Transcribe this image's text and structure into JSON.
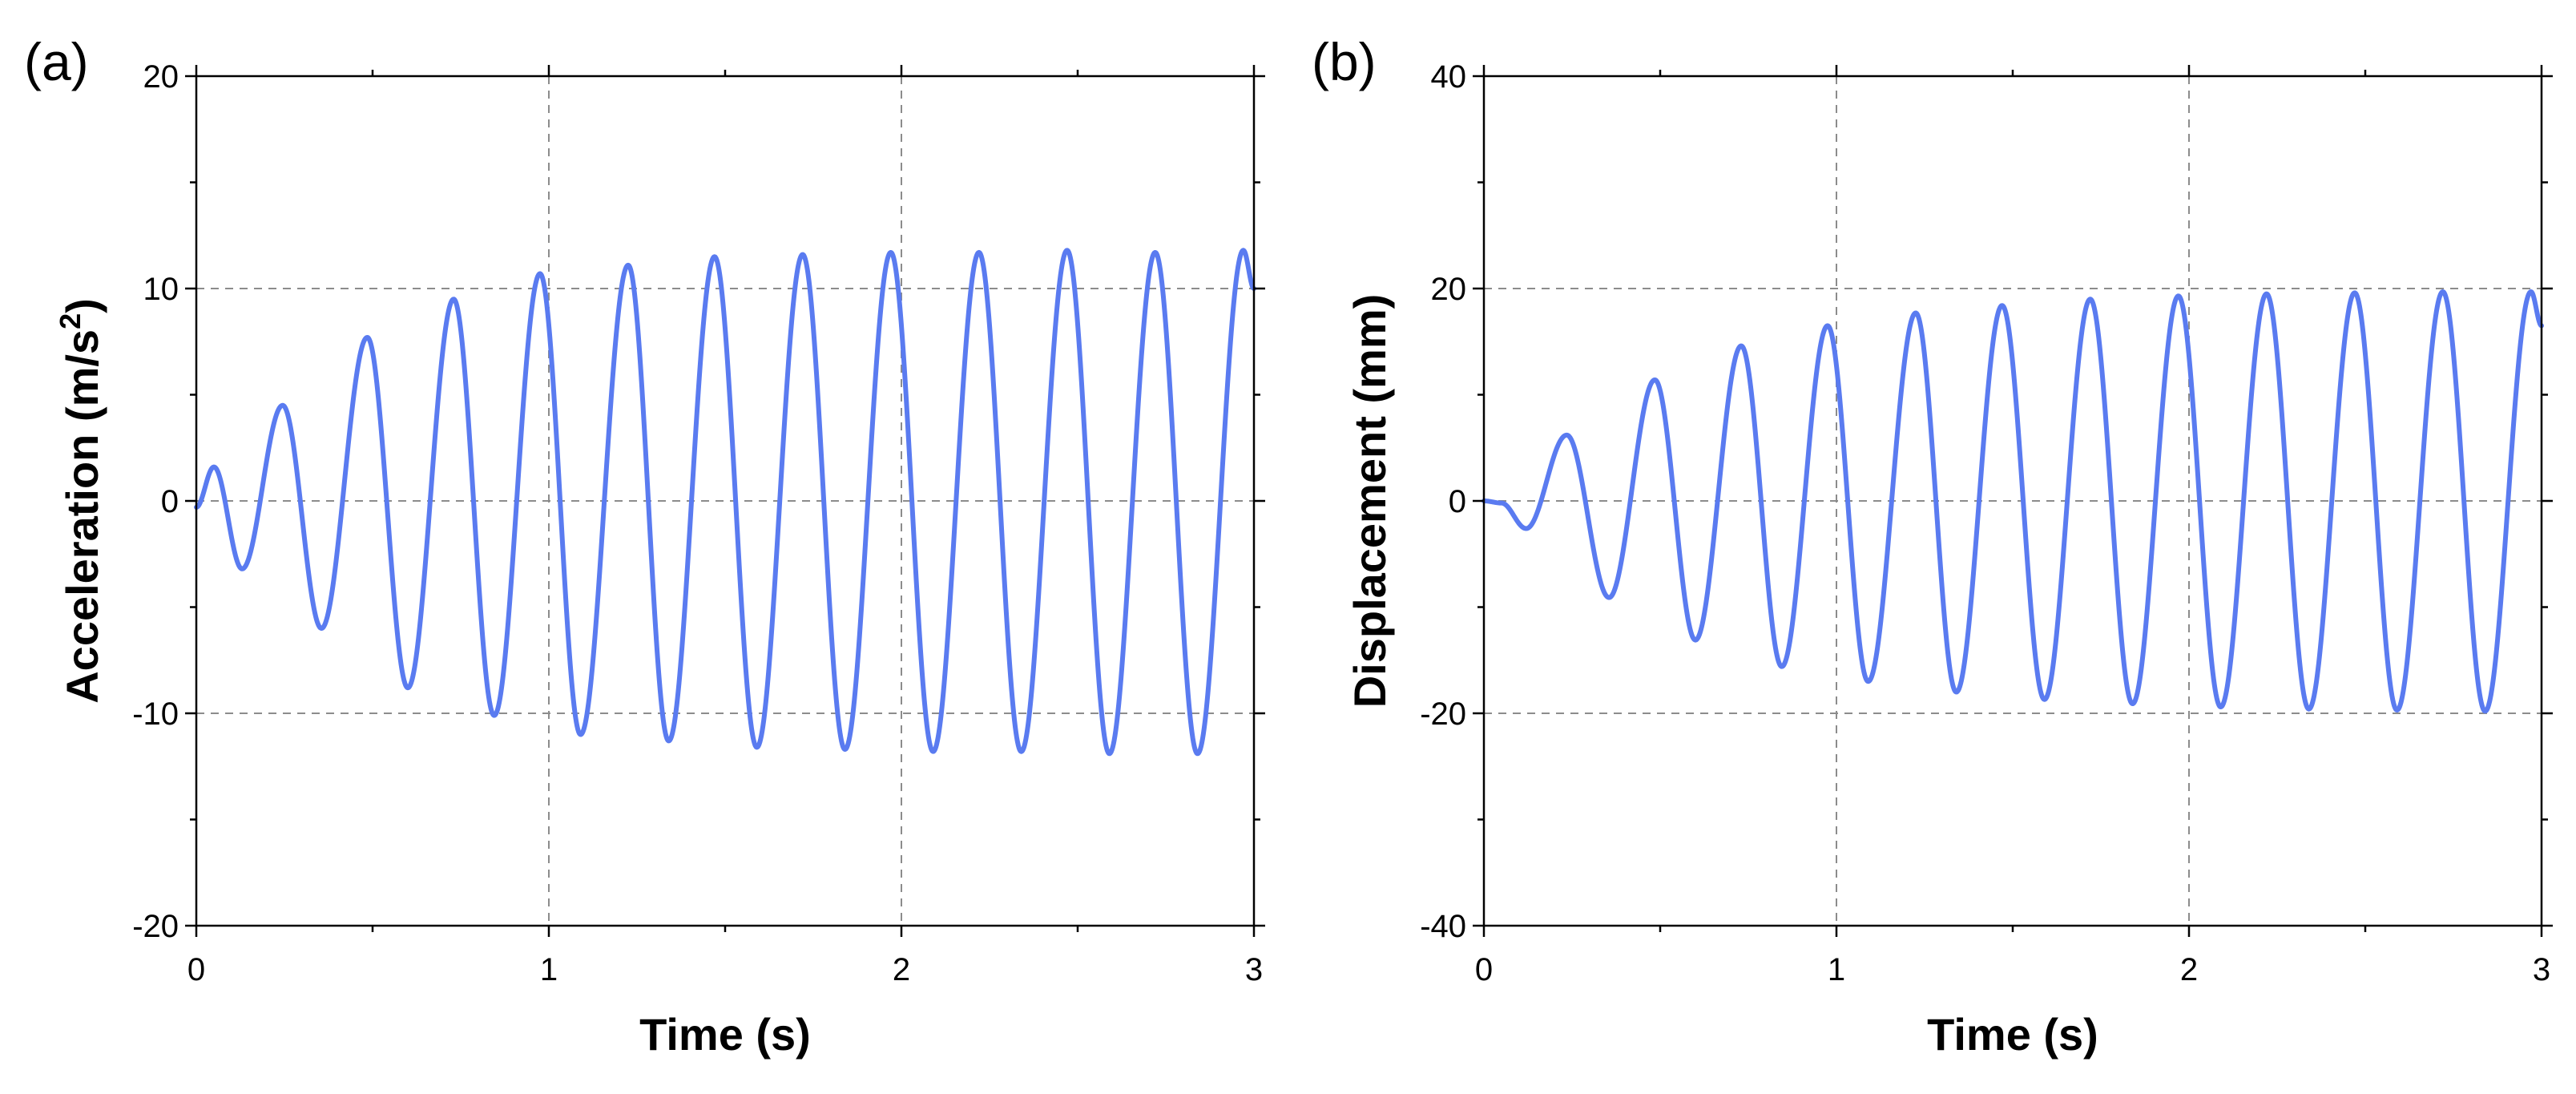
{
  "colors": {
    "series": "#5a7bf0",
    "axis": "#000000",
    "grid": "#8c8c8c",
    "background": "#ffffff"
  },
  "chart_data": [
    {
      "id": "panel-a",
      "type": "line",
      "panel_label": "(a)",
      "title": "",
      "xlabel": "Time (s)",
      "ylabel_main": "Acceleration (m/s",
      "ylabel_sup": "2",
      "ylabel_tail": ")",
      "xlim": [
        0,
        3
      ],
      "ylim": [
        -20,
        20
      ],
      "xticks": [
        0,
        1,
        2,
        3
      ],
      "xtick_labels": [
        "0",
        "1",
        "2",
        "3"
      ],
      "yticks": [
        -20,
        -10,
        0,
        10,
        20
      ],
      "ytick_labels": [
        "-20",
        "-10",
        "0",
        "10",
        "20"
      ],
      "grid": "dashed at x=1,2 and y=-10,0,10",
      "series": [
        {
          "x": [
            0.0,
            0.05,
            0.13,
            0.245,
            0.355,
            0.485,
            0.6,
            0.73,
            0.845,
            0.975,
            1.09,
            1.225,
            1.34,
            1.47,
            1.59,
            1.72,
            1.84,
            1.97,
            2.09,
            2.22,
            2.34,
            2.47,
            2.59,
            2.72,
            2.84,
            2.97,
            3.0
          ],
          "y": [
            -0.3,
            1.6,
            -3.2,
            4.5,
            -6.0,
            7.7,
            -8.8,
            9.5,
            -10.1,
            10.7,
            -11.0,
            11.1,
            -11.3,
            11.5,
            -11.6,
            11.6,
            -11.7,
            11.7,
            -11.8,
            11.7,
            -11.8,
            11.8,
            -11.9,
            11.7,
            -11.9,
            11.8,
            10.0
          ]
        }
      ]
    },
    {
      "id": "panel-b",
      "type": "line",
      "panel_label": "(b)",
      "title": "",
      "xlabel": "Time (s)",
      "ylabel_main": "Displacement (mm)",
      "ylabel_sup": "",
      "ylabel_tail": "",
      "xlim": [
        0,
        3
      ],
      "ylim": [
        -40,
        40
      ],
      "xticks": [
        0,
        1,
        2,
        3
      ],
      "xtick_labels": [
        "0",
        "1",
        "2",
        "3"
      ],
      "yticks": [
        -40,
        -20,
        0,
        20,
        40
      ],
      "ytick_labels": [
        "-40",
        "-20",
        "0",
        "20",
        "40"
      ],
      "grid": "dashed at x=1,2 and y=-20,0,20",
      "series": [
        {
          "x": [
            0.0,
            0.05,
            0.12,
            0.235,
            0.355,
            0.485,
            0.6,
            0.73,
            0.845,
            0.975,
            1.09,
            1.225,
            1.34,
            1.47,
            1.59,
            1.72,
            1.84,
            1.97,
            2.09,
            2.22,
            2.34,
            2.47,
            2.59,
            2.72,
            2.84,
            2.97,
            3.0
          ],
          "y": [
            0.0,
            -0.2,
            -2.6,
            6.2,
            -9.1,
            11.4,
            -13.1,
            14.6,
            -15.6,
            16.5,
            -17.0,
            17.7,
            -18.0,
            18.4,
            -18.7,
            19.0,
            -19.1,
            19.3,
            -19.4,
            19.5,
            -19.6,
            19.6,
            -19.7,
            19.7,
            -19.8,
            19.7,
            16.5
          ]
        }
      ]
    }
  ]
}
